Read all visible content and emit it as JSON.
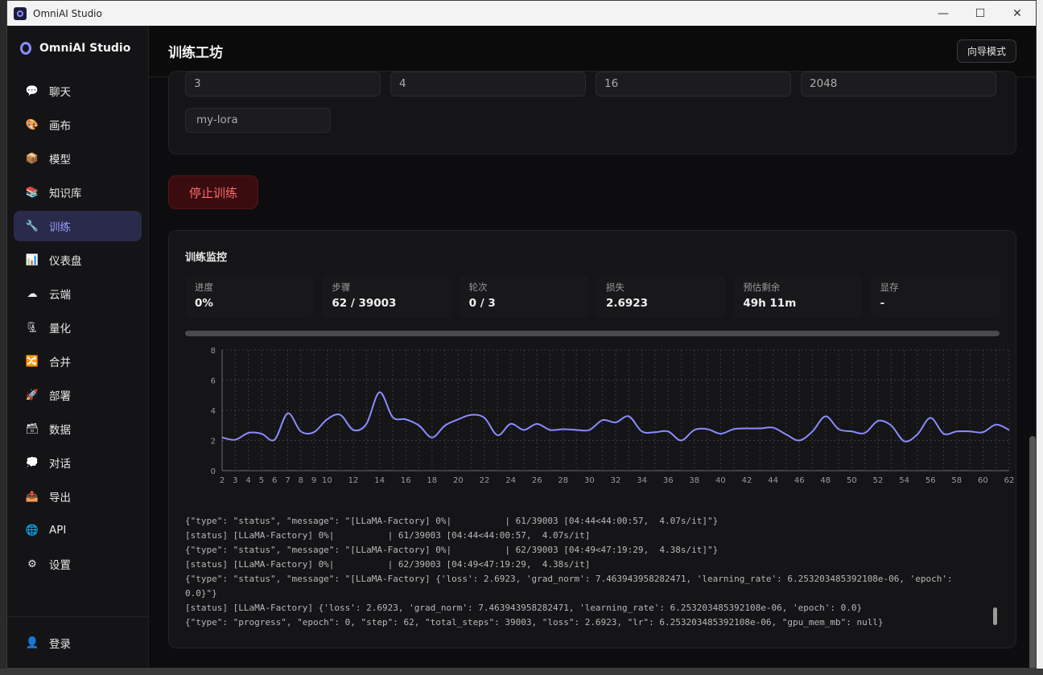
{
  "window": {
    "title": "OmniAI Studio",
    "minimize": "—",
    "maximize": "☐",
    "close": "✕"
  },
  "sidebar": {
    "brand": "OmniAI Studio",
    "items": [
      {
        "label": "聊天",
        "icon": "chat-bubble-icon",
        "glyph": "💬"
      },
      {
        "label": "画布",
        "icon": "palette-icon",
        "glyph": "🎨"
      },
      {
        "label": "模型",
        "icon": "package-icon",
        "glyph": "📦"
      },
      {
        "label": "知识库",
        "icon": "books-icon",
        "glyph": "📚"
      },
      {
        "label": "训练",
        "icon": "wrench-icon",
        "glyph": "🔧",
        "active": true
      },
      {
        "label": "仪表盘",
        "icon": "bar-chart-icon",
        "glyph": "📊"
      },
      {
        "label": "云端",
        "icon": "cloud-icon",
        "glyph": "☁"
      },
      {
        "label": "量化",
        "icon": "clamp-icon",
        "glyph": "🗜"
      },
      {
        "label": "合并",
        "icon": "shuffle-icon",
        "glyph": "🔀"
      },
      {
        "label": "部署",
        "icon": "rocket-icon",
        "glyph": "🚀"
      },
      {
        "label": "数据",
        "icon": "card-box-icon",
        "glyph": "🗃"
      },
      {
        "label": "对话",
        "icon": "speech-icon",
        "glyph": "💭"
      },
      {
        "label": "导出",
        "icon": "outbox-icon",
        "glyph": "📤"
      },
      {
        "label": "API",
        "icon": "globe-icon",
        "glyph": "🌐"
      },
      {
        "label": "设置",
        "icon": "gear-icon",
        "glyph": "⚙"
      }
    ],
    "login": {
      "label": "登录",
      "icon": "user-icon",
      "glyph": "👤"
    }
  },
  "header": {
    "title": "训练工坊",
    "wizard": "向导模式"
  },
  "config": {
    "fields": [
      "3",
      "4",
      "16",
      "2048"
    ],
    "output_name": "my-lora"
  },
  "stop_button": "停止训练",
  "monitor": {
    "title": "训练监控",
    "progress_fraction": 0.0,
    "stats": [
      {
        "label": "进度",
        "value": "0%"
      },
      {
        "label": "步骤",
        "value": "62 / 39003"
      },
      {
        "label": "轮次",
        "value": "0 / 3"
      },
      {
        "label": "损失",
        "value": "2.6923"
      },
      {
        "label": "预估剩余",
        "value": "49h 11m"
      },
      {
        "label": "显存",
        "value": "-"
      }
    ],
    "log": [
      "{\"type\": \"status\", \"message\": \"[LLaMA-Factory] 0%|          | 61/39003 [04:44<44:00:57,  4.07s/it]\"}",
      "[status] [LLaMA-Factory] 0%|          | 61/39003 [04:44<44:00:57,  4.07s/it]",
      "{\"type\": \"status\", \"message\": \"[LLaMA-Factory] 0%|          | 62/39003 [04:49<47:19:29,  4.38s/it]\"}",
      "[status] [LLaMA-Factory] 0%|          | 62/39003 [04:49<47:19:29,  4.38s/it]",
      "{\"type\": \"status\", \"message\": \"[LLaMA-Factory] {'loss': 2.6923, 'grad_norm': 7.463943958282471, 'learning_rate': 6.253203485392108e-06, 'epoch': 0.0}\"}",
      "[status] [LLaMA-Factory] {'loss': 2.6923, 'grad_norm': 7.463943958282471, 'learning_rate': 6.253203485392108e-06, 'epoch': 0.0}",
      "{\"type\": \"progress\", \"epoch\": 0, \"step\": 62, \"total_steps\": 39003, \"loss\": 2.6923, \"lr\": 6.253203485392108e-06, \"gpu_mem_mb\": null}"
    ]
  },
  "chart_data": {
    "type": "line",
    "x": [
      2,
      3,
      4,
      5,
      6,
      7,
      8,
      9,
      10,
      11,
      12,
      13,
      14,
      15,
      16,
      17,
      18,
      19,
      20,
      21,
      22,
      23,
      24,
      25,
      26,
      27,
      28,
      29,
      30,
      31,
      32,
      33,
      34,
      35,
      36,
      37,
      38,
      39,
      40,
      41,
      42,
      43,
      44,
      45,
      46,
      47,
      48,
      49,
      50,
      51,
      52,
      53,
      54,
      55,
      56,
      57,
      58,
      59,
      60,
      61,
      62
    ],
    "values": [
      2.2,
      2.05,
      2.5,
      2.45,
      2.05,
      3.8,
      2.6,
      2.55,
      3.4,
      3.7,
      2.7,
      3.1,
      5.2,
      3.55,
      3.4,
      3.0,
      2.2,
      3.0,
      3.4,
      3.7,
      3.5,
      2.35,
      3.1,
      2.7,
      3.1,
      2.7,
      2.75,
      2.7,
      2.7,
      3.35,
      3.2,
      3.6,
      2.6,
      2.55,
      2.6,
      2.0,
      2.7,
      2.75,
      2.45,
      2.75,
      2.8,
      2.8,
      2.85,
      2.4,
      2.0,
      2.6,
      3.6,
      2.75,
      2.6,
      2.5,
      3.3,
      3.0,
      1.95,
      2.4,
      3.5,
      2.45,
      2.6,
      2.6,
      2.55,
      3.05,
      2.7
    ],
    "xticks": [
      2,
      3,
      4,
      5,
      6,
      7,
      8,
      9,
      10,
      12,
      14,
      16,
      18,
      20,
      22,
      24,
      26,
      28,
      30,
      32,
      34,
      36,
      38,
      40,
      42,
      44,
      46,
      48,
      50,
      52,
      54,
      56,
      58,
      60,
      62
    ],
    "yticks": [
      0,
      2,
      4,
      6,
      8
    ],
    "ylim": [
      0,
      8
    ],
    "xlim": [
      2,
      62
    ],
    "grid": true,
    "line_color": "#8a8cff"
  }
}
